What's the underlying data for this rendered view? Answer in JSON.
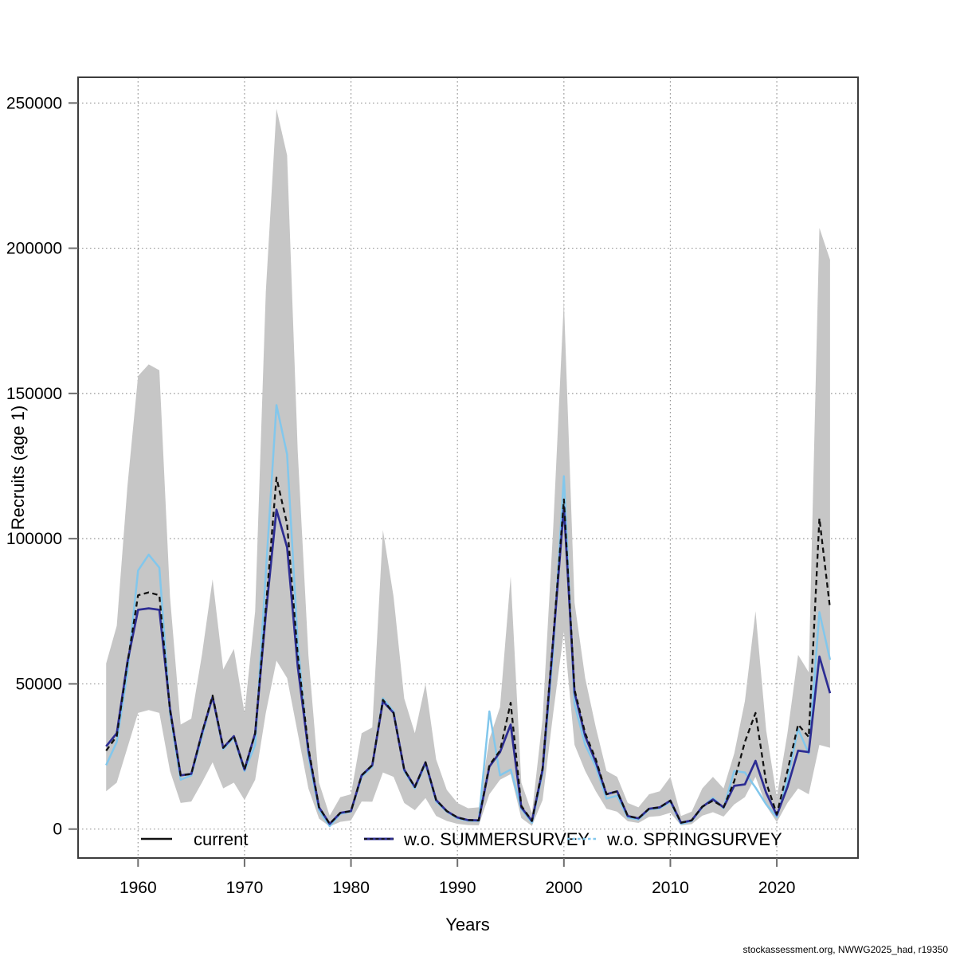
{
  "footer": {
    "credit": "stockassessment.org, NWWG2025_had, r19350"
  },
  "chart_data": {
    "type": "line",
    "title": "",
    "xlabel": "Years",
    "ylabel": "Recruits (age 1)",
    "grid": true,
    "legend_position": "bottom-inside",
    "xlim": [
      1954.4,
      2027.6
    ],
    "ylim": [
      0,
      258800
    ],
    "x_ticks": [
      1960,
      1970,
      1980,
      1990,
      2000,
      2010,
      2020
    ],
    "y_ticks": [
      0,
      50000,
      100000,
      150000,
      200000,
      250000
    ],
    "colors": {
      "current": "#111111",
      "summer": "#2d2d93",
      "spring": "#82c7ec",
      "band": "#c6c6c6",
      "grid": "#999999",
      "frame": "#3d3d3d",
      "tick": "#6e6e6e"
    },
    "x": [
      1957,
      1958,
      1959,
      1960,
      1961,
      1962,
      1963,
      1964,
      1965,
      1966,
      1967,
      1968,
      1969,
      1970,
      1971,
      1972,
      1973,
      1974,
      1975,
      1976,
      1977,
      1978,
      1979,
      1980,
      1981,
      1982,
      1983,
      1984,
      1985,
      1986,
      1987,
      1988,
      1989,
      1990,
      1991,
      1992,
      1993,
      1994,
      1995,
      1996,
      1997,
      1998,
      1999,
      2000,
      2001,
      2002,
      2003,
      2004,
      2005,
      2006,
      2007,
      2008,
      2009,
      2010,
      2011,
      2012,
      2013,
      2014,
      2015,
      2016,
      2017,
      2018,
      2019,
      2020,
      2021,
      2022,
      2023,
      2024,
      2025
    ],
    "series": [
      {
        "name": "current",
        "style": "dashed",
        "color": "#111111",
        "values": [
          27000,
          32000,
          57000,
          80500,
          81500,
          80500,
          41000,
          18500,
          19000,
          33000,
          46000,
          28000,
          32000,
          20500,
          33000,
          76000,
          121000,
          105000,
          60000,
          28000,
          7500,
          1800,
          5600,
          6200,
          18500,
          22000,
          44500,
          40000,
          20500,
          14500,
          23000,
          10000,
          6200,
          4000,
          3100,
          3000,
          22000,
          27000,
          43500,
          8000,
          2800,
          21000,
          66000,
          113500,
          48000,
          33000,
          24000,
          12000,
          13000,
          4500,
          3700,
          7000,
          7500,
          9800,
          2200,
          3000,
          7700,
          9800,
          7500,
          16500,
          30000,
          40000,
          16000,
          5200,
          20000,
          36000,
          31700,
          107000,
          76000
        ]
      },
      {
        "name": "w.o. SUMMERSURVEY",
        "style": "solid",
        "color": "#2d2d93",
        "values": [
          28500,
          33000,
          57500,
          75500,
          76000,
          75500,
          41500,
          18500,
          19000,
          33000,
          45500,
          28000,
          32000,
          20500,
          33000,
          74000,
          110000,
          97000,
          56000,
          27000,
          7500,
          1800,
          5600,
          6200,
          18500,
          22000,
          44000,
          40000,
          20500,
          14500,
          23000,
          10000,
          6200,
          4000,
          3100,
          3000,
          21500,
          26500,
          36000,
          7500,
          2800,
          20500,
          65000,
          111000,
          47000,
          32000,
          23000,
          12000,
          13000,
          4500,
          3700,
          7000,
          7500,
          9800,
          2200,
          3000,
          7700,
          10200,
          7500,
          14900,
          15400,
          23500,
          12500,
          4800,
          14500,
          27000,
          26500,
          59400,
          46800
        ]
      },
      {
        "name": "w.o. SPRINGSURVEY",
        "style": "solid",
        "color": "#82c7ec",
        "values": [
          22000,
          30000,
          54000,
          89000,
          94500,
          90000,
          40000,
          17000,
          18500,
          32000,
          45500,
          27500,
          31500,
          20000,
          29000,
          88000,
          146000,
          129000,
          64000,
          25000,
          6500,
          1000,
          5300,
          6000,
          18000,
          21500,
          45000,
          40500,
          20000,
          14000,
          22500,
          9500,
          6000,
          3700,
          2900,
          2800,
          40500,
          18500,
          20500,
          7000,
          2200,
          19500,
          62000,
          121500,
          43000,
          29000,
          21500,
          10500,
          11500,
          4000,
          3300,
          6800,
          7200,
          9400,
          1800,
          2800,
          7500,
          10700,
          7200,
          20000,
          19500,
          14300,
          8500,
          4100,
          17000,
          34500,
          26000,
          74700,
          58300
        ]
      }
    ],
    "band": {
      "name": "current confidence band",
      "color": "#c6c6c6",
      "lower": [
        13000,
        16000,
        28000,
        40000,
        41000,
        40000,
        20000,
        9000,
        9500,
        16000,
        23000,
        14000,
        16000,
        10000,
        17000,
        40000,
        58000,
        52000,
        33000,
        14000,
        3600,
        900,
        2500,
        3000,
        9500,
        9400,
        19500,
        18000,
        9000,
        6500,
        10700,
        4500,
        2800,
        1800,
        1400,
        1300,
        12000,
        17000,
        18900,
        3800,
        1100,
        10000,
        40000,
        68000,
        29000,
        20000,
        13000,
        7000,
        6000,
        2700,
        2100,
        4200,
        4500,
        5600,
        1300,
        1700,
        4600,
        5800,
        4300,
        8500,
        11000,
        18000,
        8000,
        2400,
        9000,
        14000,
        12000,
        29000,
        28000
      ],
      "upper": [
        57000,
        70000,
        118000,
        156000,
        160000,
        158000,
        80000,
        36000,
        38000,
        60000,
        86000,
        55000,
        62000,
        40000,
        75000,
        185000,
        248000,
        232000,
        130000,
        60000,
        16000,
        4600,
        11000,
        12000,
        33000,
        35000,
        103000,
        80000,
        45000,
        33000,
        50000,
        24000,
        13500,
        9000,
        7200,
        7500,
        31000,
        42000,
        87000,
        16000,
        5500,
        38000,
        104000,
        182000,
        78000,
        52000,
        35000,
        20000,
        18000,
        9000,
        7500,
        12000,
        13000,
        18000,
        4500,
        6000,
        14000,
        18000,
        14000,
        26000,
        44000,
        75000,
        34000,
        11000,
        33000,
        60000,
        54000,
        207000,
        196000
      ]
    }
  }
}
